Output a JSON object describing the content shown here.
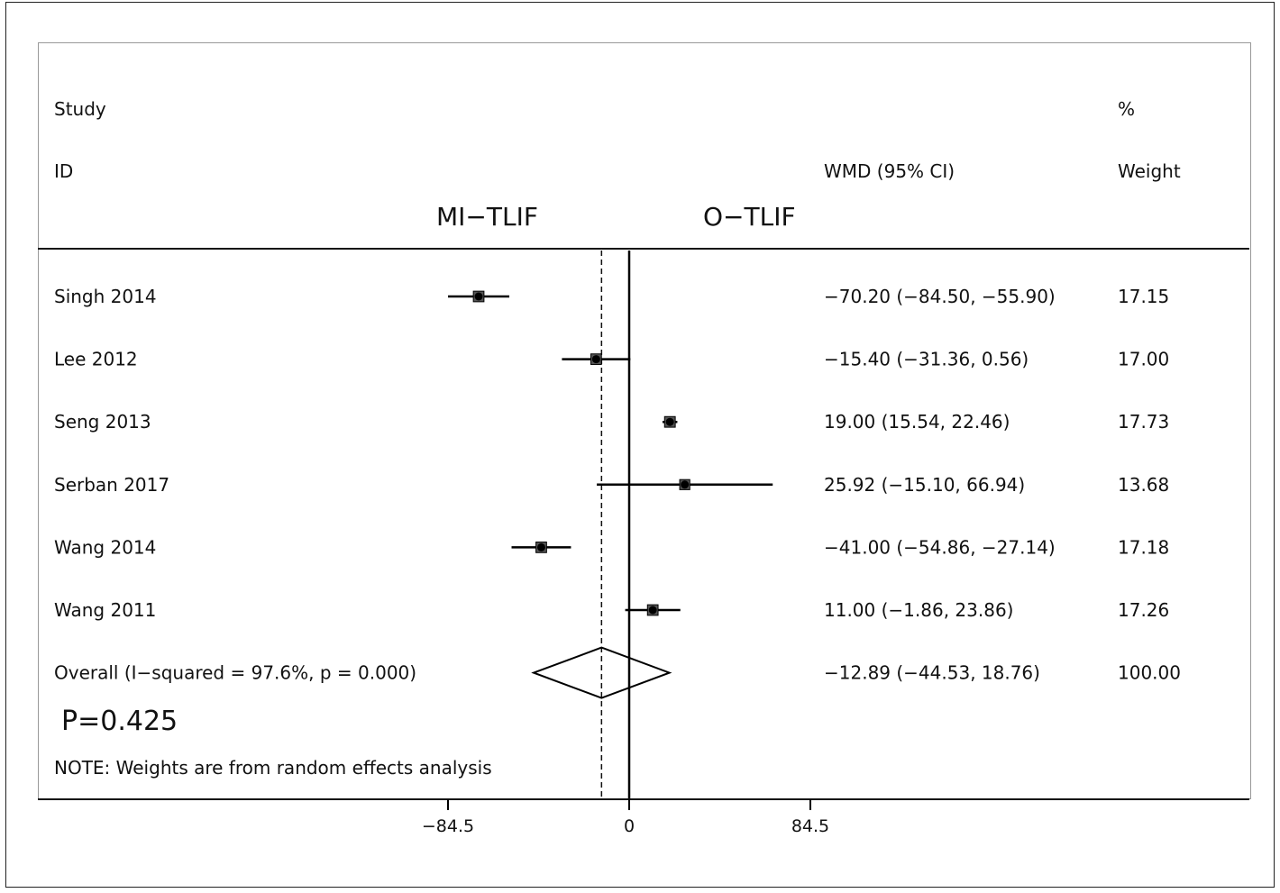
{
  "header": {
    "study_label": "Study",
    "id_label": "ID",
    "effect_label": "WMD (95% CI)",
    "percent_label": "%",
    "weight_label": "Weight",
    "favours_left": "MI−TLIF",
    "favours_right": "O−TLIF"
  },
  "p_value_label": "P=0.425",
  "note": "NOTE: Weights are from random effects analysis",
  "chart_data": {
    "type": "forest",
    "xlim": [
      -84.5,
      84.5
    ],
    "x_ticks": [
      -84.5,
      0,
      84.5
    ],
    "x_tick_labels": [
      "−84.5",
      "0",
      "84.5"
    ],
    "null_line": 0,
    "overall_line": -12.89,
    "studies": [
      {
        "id": "Singh 2014",
        "wmd": -70.2,
        "lower": -84.5,
        "upper": -55.9,
        "ci_text": "−70.20 (−84.50, −55.90)",
        "weight": 17.15,
        "weight_text": "17.15"
      },
      {
        "id": "Lee 2012",
        "wmd": -15.4,
        "lower": -31.36,
        "upper": 0.56,
        "ci_text": "−15.40 (−31.36, 0.56)",
        "weight": 17.0,
        "weight_text": "17.00"
      },
      {
        "id": "Seng 2013",
        "wmd": 19.0,
        "lower": 15.54,
        "upper": 22.46,
        "ci_text": "19.00 (15.54, 22.46)",
        "weight": 17.73,
        "weight_text": "17.73"
      },
      {
        "id": "Serban 2017",
        "wmd": 25.92,
        "lower": -15.1,
        "upper": 66.94,
        "ci_text": "25.92 (−15.10, 66.94)",
        "weight": 13.68,
        "weight_text": "13.68"
      },
      {
        "id": "Wang 2014",
        "wmd": -41.0,
        "lower": -54.86,
        "upper": -27.14,
        "ci_text": "−41.00 (−54.86, −27.14)",
        "weight": 17.18,
        "weight_text": "17.18"
      },
      {
        "id": "Wang 2011",
        "wmd": 11.0,
        "lower": -1.86,
        "upper": 23.86,
        "ci_text": "11.00 (−1.86, 23.86)",
        "weight": 17.26,
        "weight_text": "17.26"
      }
    ],
    "overall": {
      "id": "Overall  (I−squared = 97.6%, p = 0.000)",
      "wmd": -12.89,
      "lower": -44.53,
      "upper": 18.76,
      "ci_text": "−12.89 (−44.53, 18.76)",
      "weight": 100.0,
      "weight_text": "100.00"
    }
  }
}
